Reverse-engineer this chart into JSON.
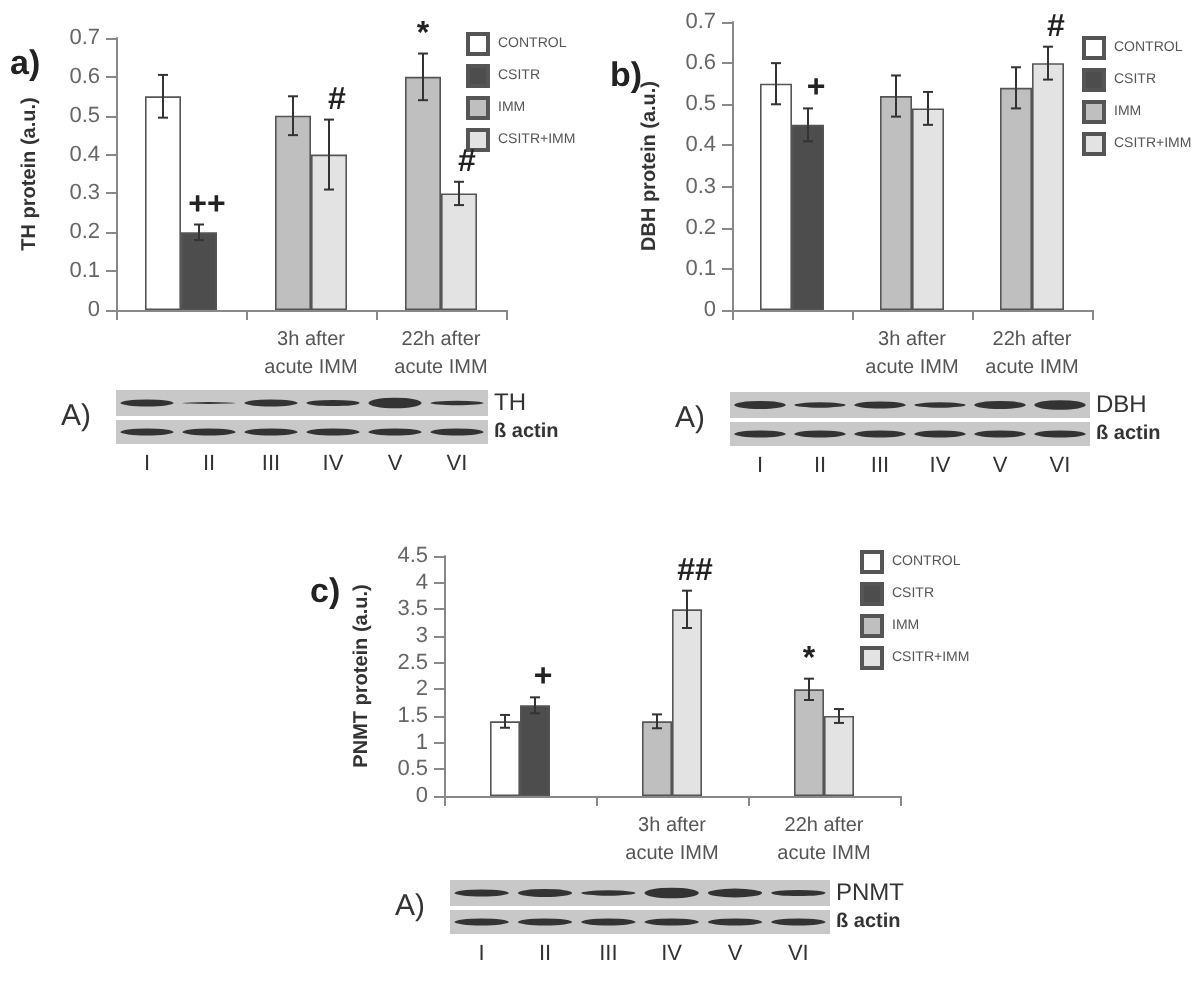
{
  "chart_data": [
    {
      "type": "bar",
      "title": "a)",
      "ylabel": "TH protein (a.u.)",
      "categories": [
        null,
        "3h after\nacute IMM",
        "22h after\nacute IMM"
      ],
      "ylim": [
        0,
        0.7
      ],
      "yticks": [
        0,
        0.1,
        0.2,
        0.3,
        0.4,
        0.5,
        0.6,
        0.7
      ],
      "grid": false,
      "legend": "top right",
      "series": [
        {
          "name": "CONTROL",
          "color": "#ffffff",
          "values": [
            0.55,
            null,
            null
          ],
          "errors": [
            0.055,
            null,
            null
          ]
        },
        {
          "name": "CSITR",
          "color": "#4d4d4d",
          "values": [
            0.2,
            null,
            null
          ],
          "errors": [
            0.02,
            null,
            null
          ],
          "value_labels": [
            "++",
            null,
            null
          ]
        },
        {
          "name": "IMM",
          "color": "#bfbfbf",
          "values": [
            null,
            0.5,
            0.6
          ],
          "errors": [
            null,
            0.05,
            0.06
          ],
          "value_labels": [
            null,
            null,
            "*"
          ]
        },
        {
          "name": "CSITR+IMM",
          "color": "#e3e3e3",
          "values": [
            null,
            0.4,
            0.3
          ],
          "errors": [
            null,
            0.09,
            0.03
          ],
          "value_labels": [
            null,
            "#",
            "#"
          ]
        }
      ],
      "annotations": [
        "A)",
        "TH",
        "ß actin",
        "I",
        "II",
        "III",
        "IV",
        "V",
        "VI"
      ]
    },
    {
      "type": "bar",
      "title": "b)",
      "ylabel": "DBH protein (a.u.)",
      "categories": [
        null,
        "3h after\nacute IMM",
        "22h after\nacute IMM"
      ],
      "ylim": [
        0,
        0.7
      ],
      "yticks": [
        0,
        0.1,
        0.2,
        0.3,
        0.4,
        0.5,
        0.6,
        0.7
      ],
      "grid": false,
      "legend": "top right",
      "series": [
        {
          "name": "CONTROL",
          "color": "#ffffff",
          "values": [
            0.55,
            null,
            null
          ],
          "errors": [
            0.05,
            null,
            null
          ]
        },
        {
          "name": "CSITR",
          "color": "#4d4d4d",
          "values": [
            0.45,
            null,
            null
          ],
          "errors": [
            0.04,
            null,
            null
          ],
          "value_labels": [
            "+",
            null,
            null
          ]
        },
        {
          "name": "IMM",
          "color": "#bfbfbf",
          "values": [
            null,
            0.52,
            0.54
          ],
          "errors": [
            null,
            0.05,
            0.05
          ]
        },
        {
          "name": "CSITR+IMM",
          "color": "#e3e3e3",
          "values": [
            null,
            0.49,
            0.6
          ],
          "errors": [
            null,
            0.04,
            0.04
          ],
          "value_labels": [
            null,
            null,
            "#"
          ]
        }
      ],
      "annotations": [
        "A)",
        "DBH",
        "ß actin",
        "I",
        "II",
        "III",
        "IV",
        "V",
        "VI"
      ]
    },
    {
      "type": "bar",
      "title": "c)",
      "ylabel": "PNMT protein (a.u.)",
      "categories": [
        null,
        "3h after\nacute IMM",
        "22h after\nacute IMM"
      ],
      "ylim": [
        0,
        4.5
      ],
      "yticks": [
        0,
        0.5,
        1,
        1.5,
        2,
        2.5,
        3,
        3.5,
        4,
        4.5
      ],
      "grid": false,
      "legend": "top right",
      "series": [
        {
          "name": "CONTROL",
          "color": "#ffffff",
          "values": [
            1.4,
            null,
            null
          ],
          "errors": [
            0.12,
            null,
            null
          ]
        },
        {
          "name": "CSITR",
          "color": "#4d4d4d",
          "values": [
            1.7,
            null,
            null
          ],
          "errors": [
            0.15,
            null,
            null
          ],
          "value_labels": [
            "+",
            null,
            null
          ]
        },
        {
          "name": "IMM",
          "color": "#bfbfbf",
          "values": [
            null,
            1.4,
            2.0
          ],
          "errors": [
            null,
            0.13,
            0.2
          ],
          "value_labels": [
            null,
            null,
            "*"
          ]
        },
        {
          "name": "CSITR+IMM",
          "color": "#e3e3e3",
          "values": [
            null,
            3.5,
            1.5
          ],
          "errors": [
            null,
            0.35,
            0.13
          ],
          "value_labels": [
            null,
            "##",
            null
          ]
        }
      ],
      "annotations": [
        "A)",
        "PNMT",
        "ß actin",
        "I",
        "II",
        "III",
        "IV",
        "V",
        "VI"
      ]
    }
  ]
}
